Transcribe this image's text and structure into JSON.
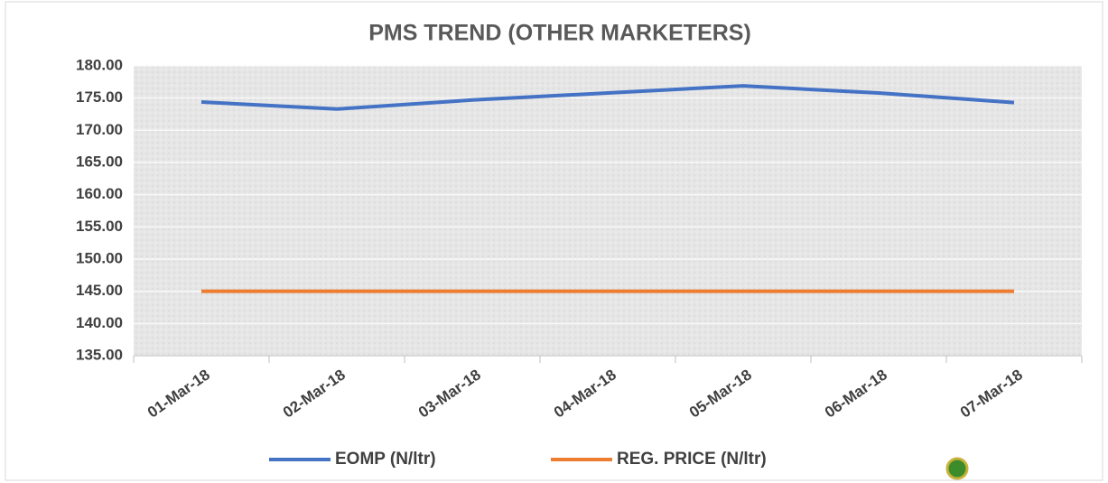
{
  "chart_data": {
    "type": "line",
    "title": "PMS TREND (OTHER MARKETERS)",
    "categories": [
      "01-Mar-18",
      "02-Mar-18",
      "03-Mar-18",
      "04-Mar-18",
      "05-Mar-18",
      "06-Mar-18",
      "07-Mar-18"
    ],
    "series": [
      {
        "name": "EOMP (N/ltr)",
        "color": "#4472c4",
        "values": [
          174.4,
          173.3,
          174.7,
          175.8,
          176.9,
          175.8,
          174.3
        ]
      },
      {
        "name": "REG. PRICE (N/ltr)",
        "color": "#ed7d31",
        "values": [
          145,
          145,
          145,
          145,
          145,
          145,
          145
        ]
      }
    ],
    "ylim": [
      135,
      180
    ],
    "yticks": [
      {
        "value": 135,
        "label": "135.00"
      },
      {
        "value": 140,
        "label": "140.00"
      },
      {
        "value": 145,
        "label": "145.00"
      },
      {
        "value": 150,
        "label": "150.00"
      },
      {
        "value": 155,
        "label": "155.00"
      },
      {
        "value": 160,
        "label": "160.00"
      },
      {
        "value": 165,
        "label": "165.00"
      },
      {
        "value": 170,
        "label": "170.00"
      },
      {
        "value": 175,
        "label": "175.00"
      },
      {
        "value": 180,
        "label": "180.00"
      }
    ],
    "grid": true,
    "legend": "bottom"
  }
}
